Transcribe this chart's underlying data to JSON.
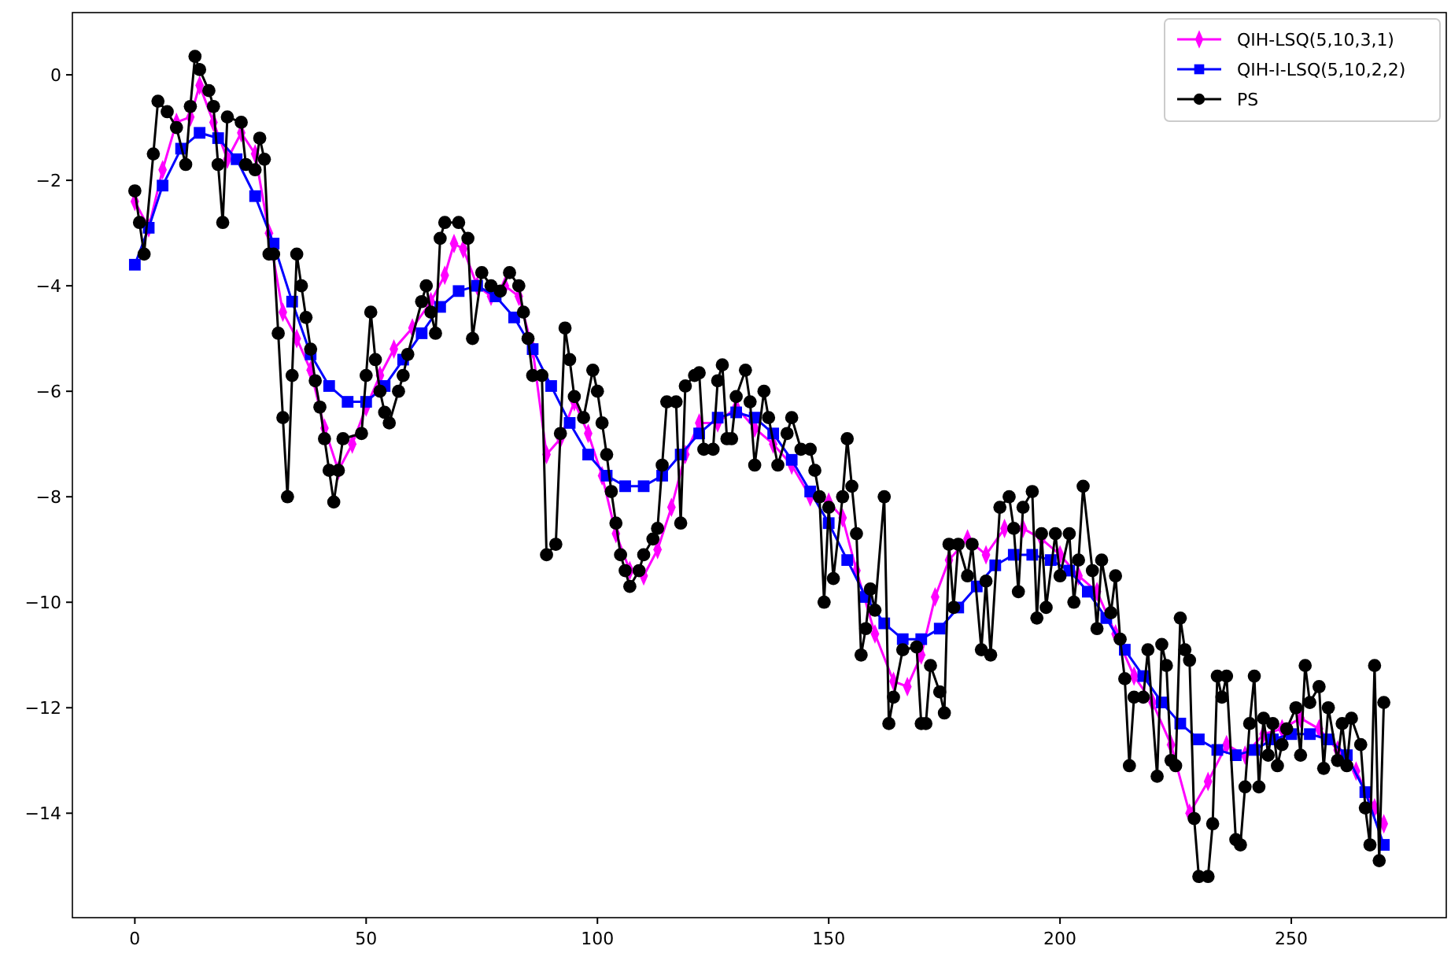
{
  "chart_data": {
    "type": "line",
    "xlim": [
      -13.5,
      283.5
    ],
    "ylim": [
      -15.98,
      1.18
    ],
    "xticks": [
      0,
      50,
      100,
      150,
      200,
      250
    ],
    "yticks": [
      0,
      {
        "value": -2,
        "label": "−2"
      },
      {
        "value": -4,
        "label": "−4"
      },
      {
        "value": -6,
        "label": "−6"
      },
      {
        "value": -8,
        "label": "−8"
      },
      {
        "value": -10,
        "label": "−10"
      },
      {
        "value": -12,
        "label": "−12"
      },
      {
        "value": -14,
        "label": "−14"
      }
    ],
    "legend": "top right",
    "line_style": "solid",
    "series": [
      {
        "name": "QIH-LSQ(5,10,3,1)",
        "color": "#ff00ff",
        "marker": "diamond",
        "x": [
          0,
          3,
          6,
          9,
          12,
          14,
          17,
          20,
          23,
          26,
          29,
          32,
          35,
          38,
          41,
          44,
          47,
          50,
          53,
          56,
          60,
          64,
          67,
          69,
          71,
          74,
          77,
          80,
          83,
          86,
          89,
          92,
          95,
          98,
          101,
          104,
          107,
          110,
          113,
          116,
          119,
          122,
          126,
          130,
          134,
          138,
          142,
          146,
          150,
          153,
          156,
          160,
          164,
          167,
          170,
          173,
          176,
          180,
          184,
          188,
          192,
          196,
          200,
          204,
          208,
          212,
          216,
          220,
          224,
          228,
          232,
          236,
          240,
          244,
          248,
          252,
          256,
          260,
          264,
          268,
          270
        ],
        "values": [
          -2.4,
          -2.9,
          -1.8,
          -0.9,
          -0.8,
          -0.2,
          -0.9,
          -1.6,
          -1.1,
          -1.5,
          -3.0,
          -4.5,
          -5.0,
          -5.6,
          -6.7,
          -7.5,
          -7.0,
          -6.3,
          -5.7,
          -5.2,
          -4.8,
          -4.3,
          -3.8,
          -3.2,
          -3.3,
          -4.0,
          -4.2,
          -4.0,
          -4.2,
          -5.2,
          -7.2,
          -6.9,
          -6.2,
          -6.8,
          -7.6,
          -8.7,
          -9.4,
          -9.5,
          -9.0,
          -8.2,
          -7.2,
          -6.6,
          -6.6,
          -6.3,
          -6.7,
          -7.0,
          -7.4,
          -8.0,
          -8.1,
          -8.4,
          -9.4,
          -10.6,
          -11.5,
          -11.6,
          -11.0,
          -9.9,
          -9.2,
          -8.8,
          -9.1,
          -8.6,
          -8.6,
          -8.8,
          -9.1,
          -9.5,
          -9.8,
          -10.6,
          -11.4,
          -11.9,
          -12.7,
          -14.0,
          -13.4,
          -12.7,
          -12.9,
          -12.5,
          -12.4,
          -12.2,
          -12.4,
          -12.8,
          -13.2,
          -13.9,
          -14.2
        ]
      },
      {
        "name": "QIH-I-LSQ(5,10,2,2)",
        "color": "#0000ff",
        "marker": "square",
        "x": [
          0,
          3,
          6,
          10,
          14,
          18,
          22,
          26,
          30,
          34,
          38,
          42,
          46,
          50,
          54,
          58,
          62,
          66,
          70,
          74,
          78,
          82,
          86,
          90,
          94,
          98,
          102,
          106,
          110,
          114,
          118,
          122,
          126,
          130,
          134,
          138,
          142,
          146,
          150,
          154,
          158,
          162,
          166,
          170,
          174,
          178,
          182,
          186,
          190,
          194,
          198,
          202,
          206,
          210,
          214,
          218,
          222,
          226,
          230,
          234,
          238,
          242,
          246,
          250,
          254,
          258,
          262,
          266,
          270
        ],
        "values": [
          -3.6,
          -2.9,
          -2.1,
          -1.4,
          -1.1,
          -1.2,
          -1.6,
          -2.3,
          -3.2,
          -4.3,
          -5.3,
          -5.9,
          -6.2,
          -6.2,
          -5.9,
          -5.4,
          -4.9,
          -4.4,
          -4.1,
          -4.0,
          -4.2,
          -4.6,
          -5.2,
          -5.9,
          -6.6,
          -7.2,
          -7.6,
          -7.8,
          -7.8,
          -7.6,
          -7.2,
          -6.8,
          -6.5,
          -6.4,
          -6.5,
          -6.8,
          -7.3,
          -7.9,
          -8.5,
          -9.2,
          -9.9,
          -10.4,
          -10.7,
          -10.7,
          -10.5,
          -10.1,
          -9.7,
          -9.3,
          -9.1,
          -9.1,
          -9.2,
          -9.4,
          -9.8,
          -10.3,
          -10.9,
          -11.4,
          -11.9,
          -12.3,
          -12.6,
          -12.8,
          -12.9,
          -12.8,
          -12.6,
          -12.5,
          -12.5,
          -12.6,
          -12.9,
          -13.6,
          -14.6
        ]
      },
      {
        "name": "PS",
        "color": "#000000",
        "marker": "circle",
        "x": [
          0,
          1,
          2,
          4,
          5,
          7,
          9,
          11,
          12,
          13,
          14,
          16,
          17,
          18,
          19,
          20,
          23,
          24,
          26,
          27,
          28,
          29,
          30,
          31,
          32,
          33,
          34,
          35,
          36,
          37,
          38,
          39,
          40,
          41,
          42,
          43,
          44,
          45,
          49,
          50,
          51,
          52,
          53,
          54,
          55,
          57,
          58,
          59,
          62,
          63,
          64,
          65,
          66,
          67,
          70,
          72,
          73,
          75,
          77,
          79,
          81,
          83,
          84,
          85,
          86,
          88,
          89,
          91,
          92,
          93,
          94,
          95,
          97,
          99,
          100,
          101,
          102,
          103,
          104,
          105,
          106,
          107,
          109,
          110,
          112,
          113,
          114,
          115,
          117,
          118,
          119,
          121,
          122,
          123,
          125,
          126,
          127,
          128,
          129,
          130,
          132,
          133,
          134,
          136,
          137,
          139,
          141,
          142,
          144,
          146,
          147,
          148,
          149,
          150,
          151,
          153,
          154,
          155,
          156,
          157,
          158,
          159,
          160,
          162,
          163,
          164,
          166,
          169,
          170,
          171,
          172,
          174,
          175,
          176,
          177,
          178,
          180,
          181,
          183,
          184,
          185,
          187,
          189,
          190,
          191,
          192,
          194,
          195,
          196,
          197,
          199,
          200,
          202,
          203,
          204,
          205,
          207,
          208,
          209,
          211,
          212,
          213,
          214,
          215,
          216,
          218,
          219,
          221,
          222,
          223,
          224,
          225,
          226,
          227,
          228,
          229,
          230,
          232,
          233,
          234,
          235,
          236,
          238,
          239,
          240,
          241,
          242,
          243,
          244,
          245,
          246,
          247,
          248,
          249,
          251,
          252,
          253,
          254,
          256,
          257,
          258,
          260,
          261,
          262,
          263,
          265,
          266,
          267,
          268,
          269,
          270
        ],
        "values": [
          -2.2,
          -2.8,
          -3.4,
          -1.5,
          -0.5,
          -0.7,
          -1.0,
          -1.7,
          -0.6,
          0.35,
          0.1,
          -0.3,
          -0.6,
          -1.7,
          -2.8,
          -0.8,
          -0.9,
          -1.7,
          -1.8,
          -1.2,
          -1.6,
          -3.4,
          -3.4,
          -4.9,
          -6.5,
          -8.0,
          -5.7,
          -3.4,
          -4.0,
          -4.6,
          -5.2,
          -5.8,
          -6.3,
          -6.9,
          -7.5,
          -8.1,
          -7.5,
          -6.9,
          -6.8,
          -5.7,
          -4.5,
          -5.4,
          -6.0,
          -6.4,
          -6.6,
          -6.0,
          -5.7,
          -5.3,
          -4.3,
          -4.0,
          -4.5,
          -4.9,
          -3.1,
          -2.8,
          -2.8,
          -3.1,
          -5.0,
          -3.75,
          -4.0,
          -4.1,
          -3.75,
          -4.0,
          -4.5,
          -5.0,
          -5.7,
          -5.7,
          -9.1,
          -8.9,
          -6.8,
          -4.8,
          -5.4,
          -6.1,
          -6.5,
          -5.6,
          -6.0,
          -6.6,
          -7.2,
          -7.9,
          -8.5,
          -9.1,
          -9.4,
          -9.7,
          -9.4,
          -9.1,
          -8.8,
          -8.6,
          -7.4,
          -6.2,
          -6.2,
          -8.5,
          -5.9,
          -5.7,
          -5.65,
          -7.1,
          -7.1,
          -5.8,
          -5.5,
          -6.9,
          -6.9,
          -6.1,
          -5.6,
          -6.2,
          -7.4,
          -6.0,
          -6.5,
          -7.4,
          -6.8,
          -6.5,
          -7.1,
          -7.1,
          -7.5,
          -8.0,
          -10.0,
          -8.2,
          -9.55,
          -8.0,
          -6.9,
          -7.8,
          -8.7,
          -11.0,
          -10.5,
          -9.75,
          -10.15,
          -8.0,
          -12.3,
          -11.8,
          -10.9,
          -10.85,
          -12.3,
          -12.3,
          -11.2,
          -11.7,
          -12.1,
          -8.9,
          -10.1,
          -8.9,
          -9.5,
          -8.9,
          -10.9,
          -9.6,
          -11.0,
          -8.2,
          -8.0,
          -8.6,
          -9.8,
          -8.2,
          -7.9,
          -10.3,
          -8.7,
          -10.1,
          -8.7,
          -9.5,
          -8.7,
          -10.0,
          -9.2,
          -7.8,
          -9.4,
          -10.5,
          -9.2,
          -10.2,
          -9.5,
          -10.7,
          -11.45,
          -13.1,
          -11.8,
          -11.8,
          -10.9,
          -13.3,
          -10.8,
          -11.2,
          -13.0,
          -13.1,
          -10.3,
          -10.9,
          -11.1,
          -14.1,
          -15.2,
          -15.2,
          -14.2,
          -11.4,
          -11.8,
          -11.4,
          -14.5,
          -14.6,
          -13.5,
          -12.3,
          -11.4,
          -13.5,
          -12.2,
          -12.9,
          -12.3,
          -13.1,
          -12.7,
          -12.4,
          -12.0,
          -12.9,
          -11.2,
          -11.9,
          -11.6,
          -13.15,
          -12.0,
          -13.0,
          -12.3,
          -13.1,
          -12.2,
          -12.7,
          -13.9,
          -14.6,
          -11.2,
          -14.9,
          -11.9
        ]
      }
    ]
  }
}
